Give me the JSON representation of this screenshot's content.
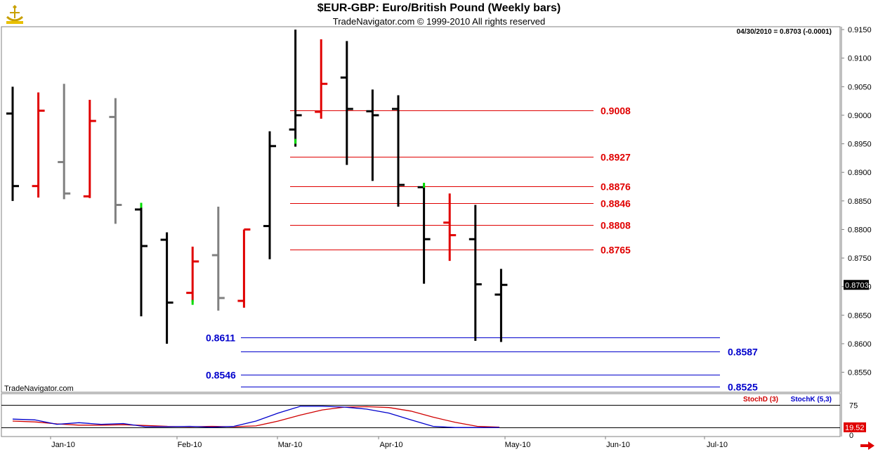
{
  "header": {
    "title": "$EUR-GBP:  Euro/British Pound  (Weekly bars)",
    "subtitle": "TradeNavigator.com © 1999-2010 All rights reserved",
    "last_readout": "04/30/2010 = 0.8703 (-0.0001)",
    "watermark": "TradeNavigator.com"
  },
  "icons": {
    "logo": "trade-navigator-logo-icon",
    "scroll": "scroll-right-arrow-icon"
  },
  "colors": {
    "up_bar": "#000000",
    "down_bar": "#e00000",
    "neutral_bar": "#808080",
    "gap_tick": "#00dd00",
    "resistance": "#e00000",
    "support": "#0000cc",
    "stoch_d": "#d00000",
    "stoch_k": "#0000cc"
  },
  "chart_data": [
    {
      "type": "ohlc",
      "title": "$EUR-GBP:  Euro/British Pound  (Weekly bars)",
      "ylim": [
        0.8515,
        0.9155
      ],
      "y_ticks": [
        "0.9150",
        "0.9100",
        "0.9050",
        "0.9000",
        "0.8950",
        "0.8900",
        "0.8850",
        "0.8800",
        "0.8750",
        "0.8700",
        "0.8650",
        "0.8600",
        "0.8550"
      ],
      "x_tick_labels": [
        "Jan-10",
        "Feb-10",
        "Mar-10",
        "Apr-10",
        "May-10",
        "Jun-10",
        "Jul-10"
      ],
      "last_price_label": "0.8703",
      "bars": [
        {
          "w": 0,
          "o": 0.9003,
          "h": 0.905,
          "l": 0.885,
          "c": 0.8876,
          "color": "up"
        },
        {
          "w": 1,
          "o": 0.8876,
          "h": 0.904,
          "l": 0.8856,
          "c": 0.9008,
          "color": "down"
        },
        {
          "w": 2,
          "o": 0.8918,
          "h": 0.9055,
          "l": 0.8853,
          "c": 0.8863,
          "color": "neutral"
        },
        {
          "w": 3,
          "o": 0.8858,
          "h": 0.9027,
          "l": 0.8855,
          "c": 0.899,
          "color": "down"
        },
        {
          "w": 4,
          "o": 0.8997,
          "h": 0.903,
          "l": 0.881,
          "c": 0.8843,
          "color": "neutral"
        },
        {
          "w": 5,
          "o": 0.8835,
          "h": 0.8843,
          "l": 0.8648,
          "c": 0.8771,
          "color": "up"
        },
        {
          "w": 6,
          "o": 0.8782,
          "h": 0.8795,
          "l": 0.86,
          "c": 0.8672,
          "color": "up"
        },
        {
          "w": 7,
          "o": 0.8689,
          "h": 0.877,
          "l": 0.8673,
          "c": 0.8744,
          "color": "down"
        },
        {
          "w": 8,
          "o": 0.8755,
          "h": 0.884,
          "l": 0.8658,
          "c": 0.868,
          "color": "neutral"
        },
        {
          "w": 9,
          "o": 0.8675,
          "h": 0.88,
          "l": 0.8663,
          "c": 0.88,
          "color": "down"
        },
        {
          "w": 10,
          "o": 0.8806,
          "h": 0.8972,
          "l": 0.8748,
          "c": 0.8946,
          "color": "up"
        },
        {
          "w": 11,
          "o": 0.8975,
          "h": 0.915,
          "l": 0.8945,
          "c": 0.9,
          "color": "up"
        },
        {
          "w": 12,
          "o": 0.9006,
          "h": 0.9133,
          "l": 0.8994,
          "c": 0.9055,
          "color": "down"
        },
        {
          "w": 13,
          "o": 0.9066,
          "h": 0.913,
          "l": 0.8913,
          "c": 0.9011,
          "color": "up"
        },
        {
          "w": 14,
          "o": 0.9007,
          "h": 0.9045,
          "l": 0.8885,
          "c": 0.9,
          "color": "up"
        },
        {
          "w": 15,
          "o": 0.9011,
          "h": 0.9035,
          "l": 0.884,
          "c": 0.8878,
          "color": "up"
        },
        {
          "w": 16,
          "o": 0.8874,
          "h": 0.8878,
          "l": 0.8705,
          "c": 0.8783,
          "color": "up"
        },
        {
          "w": 17,
          "o": 0.8812,
          "h": 0.8863,
          "l": 0.8745,
          "c": 0.879,
          "color": "down"
        },
        {
          "w": 18,
          "o": 0.8783,
          "h": 0.8843,
          "l": 0.8605,
          "c": 0.8704,
          "color": "up"
        },
        {
          "w": 19,
          "o": 0.8686,
          "h": 0.8731,
          "l": 0.8603,
          "c": 0.8703,
          "color": "up"
        }
      ],
      "gap_ticks": [
        {
          "w": 5,
          "y": 0.8843
        },
        {
          "w": 7,
          "y": 0.8673
        },
        {
          "w": 11,
          "y": 0.8955
        },
        {
          "w": 16,
          "y": 0.8878
        }
      ],
      "resistance_levels": [
        {
          "label": "0.9008",
          "value": 0.9008
        },
        {
          "label": "0.8927",
          "value": 0.8927
        },
        {
          "label": "0.8876",
          "value": 0.8876
        },
        {
          "label": "0.8846",
          "value": 0.8846
        },
        {
          "label": "0.8808",
          "value": 0.8808
        },
        {
          "label": "0.8765",
          "value": 0.8765
        }
      ],
      "support_levels": [
        {
          "label": "0.8611",
          "value": 0.8611,
          "label_side": "left"
        },
        {
          "label": "0.8587",
          "value": 0.8587,
          "label_side": "right"
        },
        {
          "label": "0.8546",
          "value": 0.8546,
          "label_side": "left"
        },
        {
          "label": "0.8525",
          "value": 0.8525,
          "label_side": "right"
        }
      ]
    },
    {
      "type": "line",
      "ylim": [
        0,
        100
      ],
      "y_ticks": [
        "75",
        "0"
      ],
      "last_value_label": "19.52",
      "grid_levels": [
        75,
        19.52
      ],
      "series": [
        {
          "name": "StochD (3)",
          "values": [
            35,
            33,
            28,
            25,
            25,
            26,
            24,
            22,
            21,
            22,
            21,
            23,
            35,
            50,
            63,
            70,
            71,
            69,
            60,
            45,
            32,
            22,
            20
          ]
        },
        {
          "name": "StochK (5,3)",
          "values": [
            40,
            38,
            27,
            31,
            27,
            29,
            21,
            21,
            22,
            20,
            22,
            35,
            55,
            72,
            72,
            70,
            65,
            55,
            38,
            22,
            19,
            19,
            19
          ]
        }
      ]
    }
  ]
}
